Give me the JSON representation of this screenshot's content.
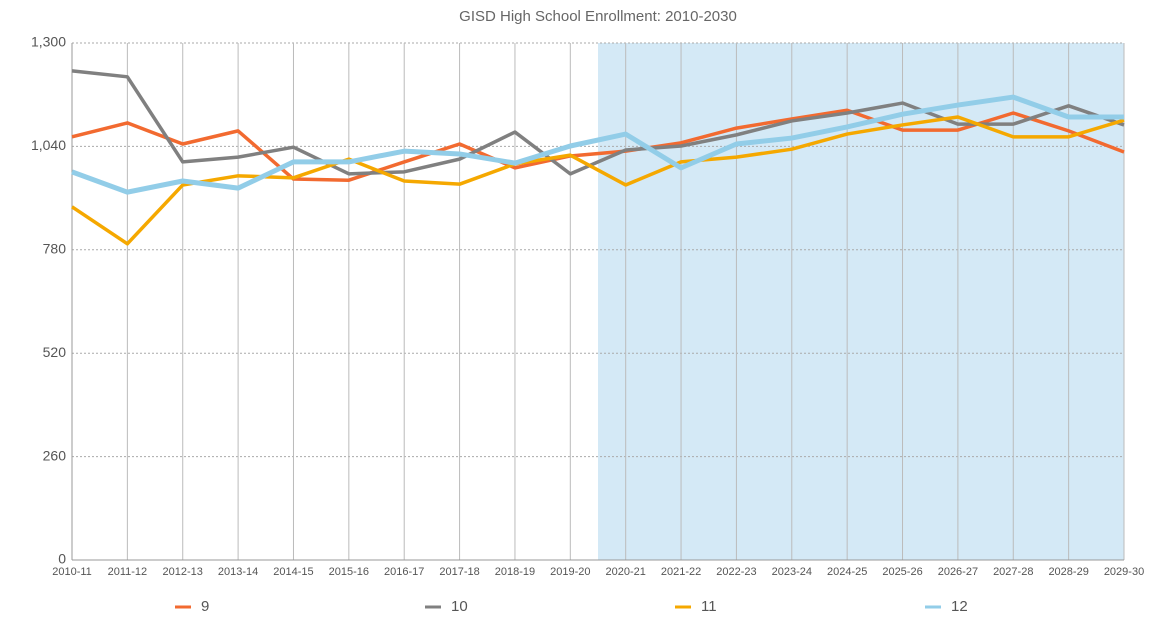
{
  "chart_data": {
    "type": "line",
    "title": "GISD High School Enrollment: 2010-2030",
    "categories": [
      "2010-11",
      "2011-12",
      "2012-13",
      "2013-14",
      "2014-15",
      "2015-16",
      "2016-17",
      "2017-18",
      "2018-19",
      "2019-20",
      "2020-21",
      "2021-22",
      "2022-23",
      "2023-24",
      "2024-25",
      "2025-26",
      "2026-27",
      "2027-28",
      "2028-29",
      "2029-30"
    ],
    "series": [
      {
        "name": "9",
        "color": "#f26a30",
        "values": [
          1064,
          1099,
          1046,
          1079,
          958,
          955,
          1001,
          1046,
          986,
          1016,
          1028,
          1049,
          1086,
          1109,
          1131,
          1081,
          1081,
          1124,
          1079,
          1026
        ]
      },
      {
        "name": "10",
        "color": "#808080",
        "values": [
          1230,
          1215,
          1001,
          1013,
          1038,
          971,
          976,
          1008,
          1076,
          971,
          1031,
          1041,
          1069,
          1104,
          1124,
          1149,
          1096,
          1096,
          1142,
          1094
        ]
      },
      {
        "name": "11",
        "color": "#f5a800",
        "values": [
          888,
          795,
          943,
          966,
          961,
          1008,
          953,
          945,
          996,
          1018,
          943,
          1001,
          1013,
          1033,
          1071,
          1094,
          1114,
          1064,
          1064,
          1106
        ]
      },
      {
        "name": "12",
        "color": "#92cde8",
        "values": [
          976,
          925,
          953,
          935,
          1001,
          1001,
          1028,
          1021,
          998,
          1041,
          1071,
          986,
          1046,
          1061,
          1089,
          1121,
          1144,
          1164,
          1114,
          1114
        ]
      }
    ],
    "ylim": [
      0,
      1300
    ],
    "yticks": [
      0,
      260,
      520,
      780,
      {
        "value": 1040,
        "label": "1,040"
      },
      {
        "value": 1300,
        "label": "1,300"
      }
    ],
    "grid": true,
    "legend": "bottom"
  }
}
